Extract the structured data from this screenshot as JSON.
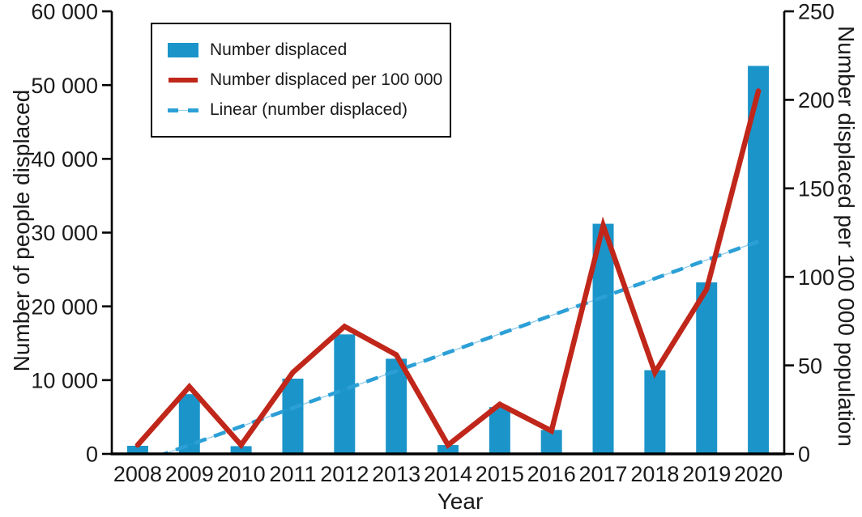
{
  "chart_data": {
    "type": "combo-bar-line",
    "categories": [
      "2008",
      "2009",
      "2010",
      "2011",
      "2012",
      "2013",
      "2014",
      "2015",
      "2016",
      "2017",
      "2018",
      "2019",
      "2020"
    ],
    "series": [
      {
        "name": "Number displaced",
        "type": "bar",
        "axis": "left",
        "color": "#1b95c9",
        "values": [
          1100,
          8100,
          1050,
          10200,
          16200,
          12900,
          1200,
          6350,
          3250,
          31200,
          11350,
          23250,
          52600
        ]
      },
      {
        "name": "Number displaced per 100 000",
        "type": "line",
        "axis": "right",
        "color": "#c0271a",
        "values": [
          5,
          38,
          5,
          46,
          72,
          56,
          5,
          28,
          13,
          129,
          46,
          93,
          205
        ]
      },
      {
        "name": "Linear (number displaced)",
        "type": "linear-trend",
        "axis": "left",
        "style": "dashed",
        "color": "#2b9fd6",
        "endpoint_values": [
          -1300,
          28800
        ]
      }
    ],
    "xlabel": "Year",
    "left_axis": {
      "label": "Number of people displaced",
      "min": 0,
      "max": 60000,
      "tick_values": [
        0,
        10000,
        20000,
        30000,
        40000,
        50000,
        60000
      ],
      "tick_labels": [
        "0",
        "10 000",
        "20 000",
        "30 000",
        "40 000",
        "50 000",
        "60 000"
      ]
    },
    "right_axis": {
      "label": "Number displaced per 100 000 population",
      "min": 0,
      "max": 250,
      "tick_values": [
        0,
        50,
        100,
        150,
        200,
        250
      ],
      "tick_labels": [
        "0",
        "50",
        "100",
        "150",
        "200",
        "250"
      ]
    },
    "legend": {
      "position": "top-left",
      "items": [
        {
          "label": "Number displaced",
          "swatch": "bar"
        },
        {
          "label": "Number displaced per 100 000",
          "swatch": "line"
        },
        {
          "label": "Linear (number displaced)",
          "swatch": "dashed-line"
        }
      ]
    },
    "grid": false,
    "background": "#ffffff",
    "text_color": "#1a1a1a",
    "axis_color": "#000000"
  }
}
